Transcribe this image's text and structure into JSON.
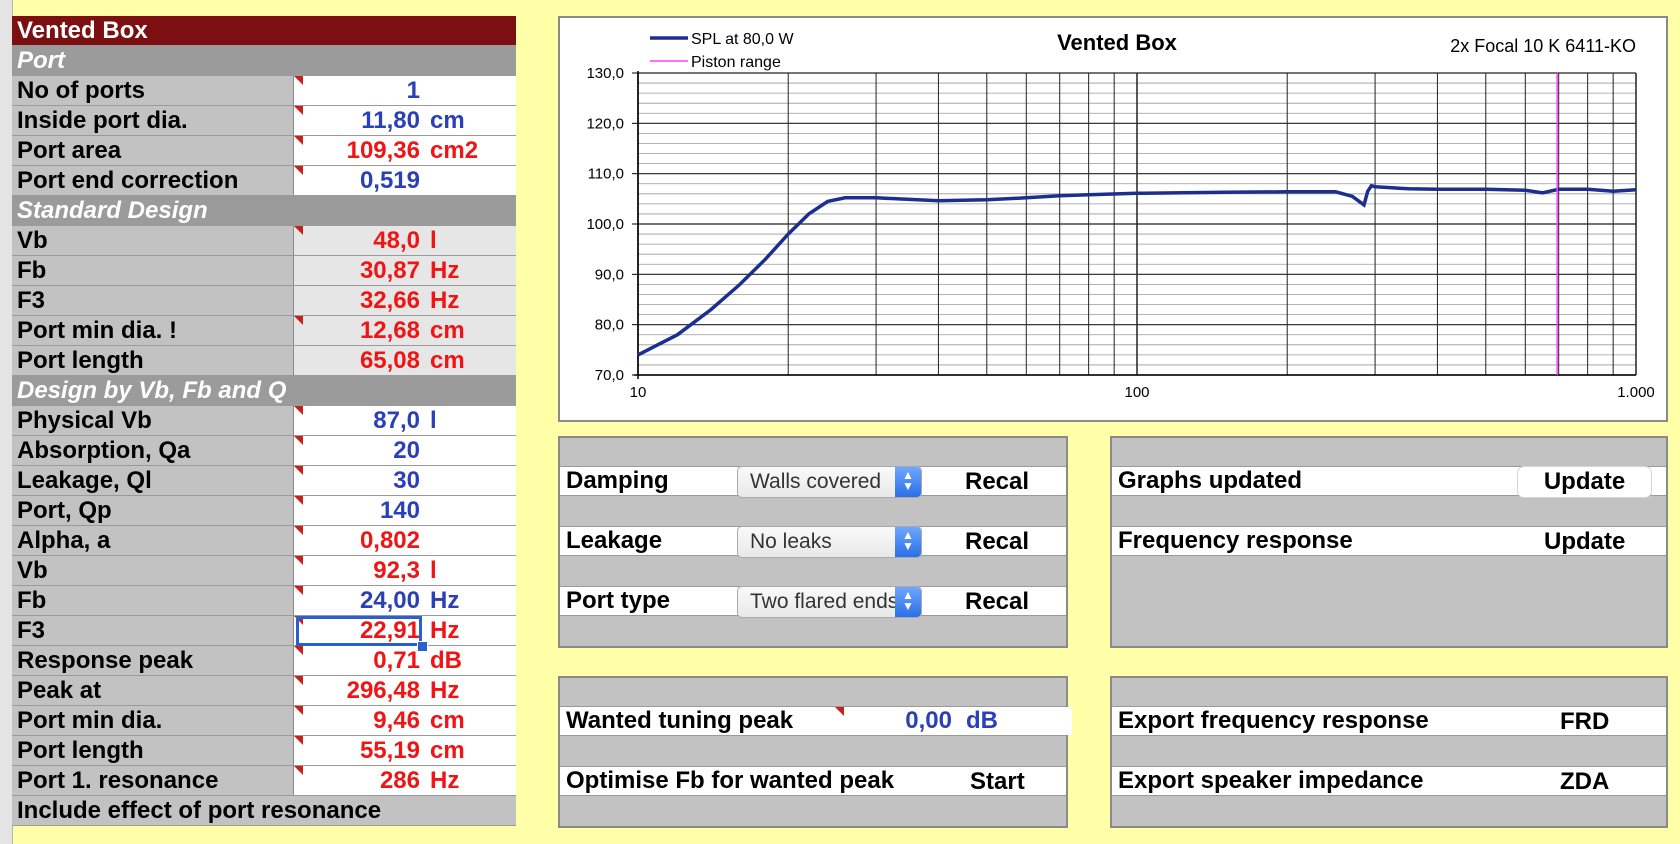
{
  "left_table": {
    "title": "Vented Box",
    "sections": {
      "port": "Port",
      "standard": "Standard Design",
      "design": "Design by Vb, Fb and Q"
    },
    "rows": {
      "no_of_ports": {
        "label": "No of ports",
        "value": "1",
        "unit": ""
      },
      "inside_port_dia": {
        "label": "Inside port dia.",
        "value": "11,80",
        "unit": "cm"
      },
      "port_area": {
        "label": "Port area",
        "value": "109,36",
        "unit": "cm2"
      },
      "port_end_correction": {
        "label": "Port end correction",
        "value": "0,519",
        "unit": ""
      },
      "std_vb": {
        "label": "Vb",
        "value": "48,0",
        "unit": "l"
      },
      "std_fb": {
        "label": "Fb",
        "value": "30,87",
        "unit": "Hz"
      },
      "std_f3": {
        "label": "F3",
        "value": "32,66",
        "unit": "Hz"
      },
      "std_port_min_dia": {
        "label": "Port min dia. !",
        "value": "12,68",
        "unit": "cm"
      },
      "std_port_length": {
        "label": "Port length",
        "value": "65,08",
        "unit": "cm"
      },
      "physical_vb": {
        "label": "Physical Vb",
        "value": "87,0",
        "unit": "l"
      },
      "absorption_qa": {
        "label": "Absorption, Qa",
        "value": "20",
        "unit": ""
      },
      "leakage_ql": {
        "label": "Leakage, Ql",
        "value": "30",
        "unit": ""
      },
      "port_qp": {
        "label": "Port, Qp",
        "value": "140",
        "unit": ""
      },
      "alpha": {
        "label": "Alpha, a",
        "value": "0,802",
        "unit": ""
      },
      "vb": {
        "label": "Vb",
        "value": "92,3",
        "unit": "l"
      },
      "fb": {
        "label": "Fb",
        "value": "24,00",
        "unit": "Hz"
      },
      "f3": {
        "label": "F3",
        "value": "22,91",
        "unit": "Hz"
      },
      "response_peak": {
        "label": "Response peak",
        "value": "0,71",
        "unit": "dB"
      },
      "peak_at": {
        "label": "Peak at",
        "value": "296,48",
        "unit": "Hz"
      },
      "port_min_dia": {
        "label": "Port min dia.",
        "value": "9,46",
        "unit": "cm"
      },
      "port_length": {
        "label": "Port length",
        "value": "55,19",
        "unit": "cm"
      },
      "port_resonance": {
        "label": "Port 1. resonance",
        "value": "286",
        "unit": "Hz"
      }
    },
    "include_text": "Include effect of port resonance"
  },
  "chart": {
    "title": "Vented Box",
    "subtitle": "2x Focal 10 K 6411-KO",
    "legend": [
      "SPL at 80,0 W",
      "Piston range"
    ],
    "y_tick_labels": [
      "130,0",
      "120,0",
      "110,0",
      "100,0",
      "90,0",
      "80,0",
      "70,0"
    ],
    "x_tick_labels": [
      "10",
      "100",
      "1.000"
    ],
    "colors": {
      "spl": "#1c2f8f",
      "piston": "#ff40ff"
    }
  },
  "chart_data": {
    "type": "line",
    "x_scale": "log",
    "xlim": [
      10,
      1000
    ],
    "ylim": [
      70,
      130
    ],
    "grid": true,
    "legend_position": "top-left",
    "series": [
      {
        "name": "SPL at 80,0 W",
        "x": [
          10,
          12,
          14,
          16,
          18,
          20,
          22,
          24,
          26,
          30,
          40,
          50,
          60,
          70,
          80,
          100,
          150,
          200,
          250,
          270,
          285,
          290,
          295,
          300,
          350,
          400,
          500,
          600,
          650,
          700,
          800,
          900,
          1000
        ],
        "y": [
          74,
          78,
          83,
          88,
          93,
          98,
          102,
          104.5,
          105.2,
          105.2,
          104.6,
          104.8,
          105.2,
          105.6,
          105.8,
          106.1,
          106.3,
          106.4,
          106.4,
          105.5,
          103.8,
          106.5,
          107.6,
          107.4,
          107,
          106.9,
          106.9,
          106.7,
          106.2,
          106.9,
          106.9,
          106.5,
          106.8
        ]
      },
      {
        "name": "Piston range",
        "x": [
          695,
          695
        ],
        "y": [
          70,
          130
        ]
      }
    ]
  },
  "controls_left": {
    "damping": {
      "label": "Damping",
      "option": "Walls covered",
      "action": "Recal"
    },
    "leakage": {
      "label": "Leakage",
      "option": "No leaks",
      "action": "Recal"
    },
    "port_type": {
      "label": "Port type",
      "option": "Two flared ends",
      "action": "Recal"
    },
    "wanted_peak": {
      "label": "Wanted tuning peak",
      "value": "0,00",
      "unit": "dB"
    },
    "optimise": {
      "label": "Optimise Fb for wanted peak",
      "action": "Start"
    }
  },
  "controls_right": {
    "graphs": {
      "label": "Graphs updated",
      "action": "Update"
    },
    "freq": {
      "label": "Frequency response",
      "action": "Update"
    },
    "export_freq": {
      "label": "Export frequency response",
      "action": "FRD"
    },
    "export_imp": {
      "label": "Export speaker impedance",
      "action": "ZDA"
    }
  }
}
